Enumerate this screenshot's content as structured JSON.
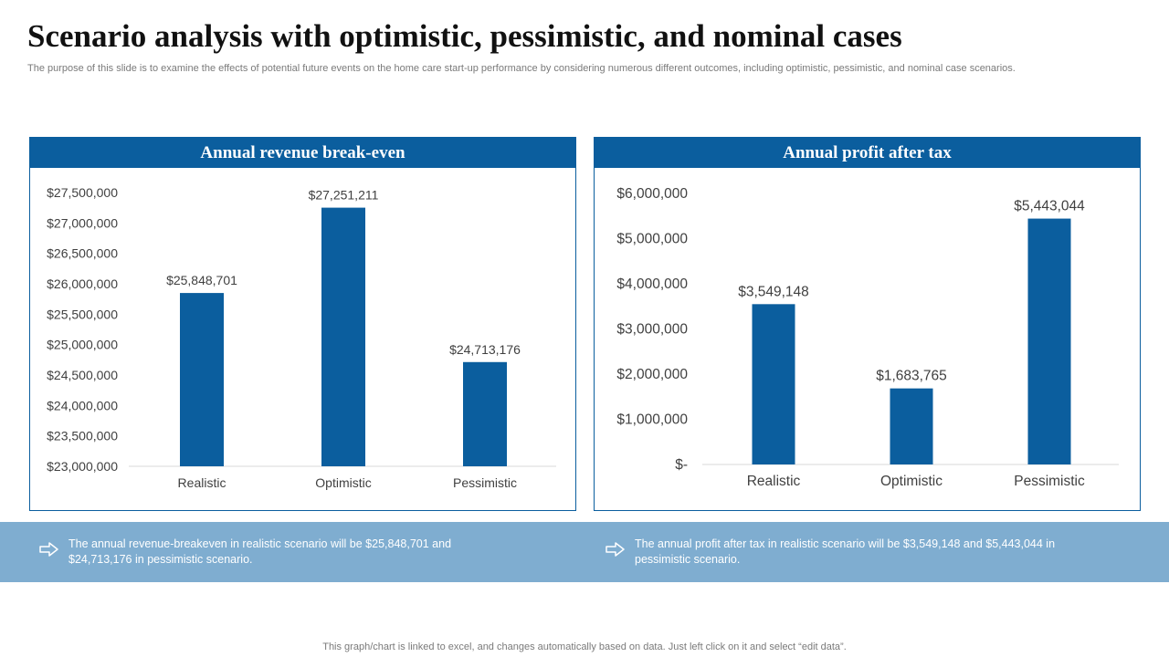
{
  "page": {
    "title": "Scenario analysis with optimistic, pessimistic, and nominal cases",
    "subtitle": "The purpose of this slide is to examine the effects of potential future events on the home care start-up performance by considering numerous different outcomes, including optimistic, pessimistic, and nominal case scenarios.",
    "footnote": "This graph/chart is linked to excel, and changes automatically based on data. Just left click on it and select “edit data”."
  },
  "summaries": [
    {
      "text": "The annual revenue-breakeven  in realistic scenario will be $25,848,701 and $24,713,176 in pessimistic scenario."
    },
    {
      "text": "The annual profit after tax in realistic scenario will be $3,549,148 and $5,443,044 in pessimistic scenario."
    }
  ],
  "colors": {
    "accent": "#0b5e9e",
    "band": "#7fadd0"
  },
  "chart_data": [
    {
      "type": "bar",
      "title": "Annual revenue break-even",
      "categories": [
        "Realistic",
        "Optimistic",
        "Pessimistic"
      ],
      "values": [
        25848701,
        27251211,
        24713176
      ],
      "data_labels": [
        "$25,848,701",
        "$27,251,211",
        "$24,713,176"
      ],
      "ylim": [
        23000000,
        27500000
      ],
      "yticks": [
        23000000,
        23500000,
        24000000,
        24500000,
        25000000,
        25500000,
        26000000,
        26500000,
        27000000,
        27500000
      ],
      "ytick_labels": [
        "$23,000,000",
        "$23,500,000",
        "$24,000,000",
        "$24,500,000",
        "$25,000,000",
        "$25,500,000",
        "$26,000,000",
        "$26,500,000",
        "$27,000,000",
        "$27,500,000"
      ],
      "xlabel": "",
      "ylabel": "",
      "grid": false,
      "legend": false
    },
    {
      "type": "bar",
      "title": "Annual profit after tax",
      "categories": [
        "Realistic",
        "Optimistic",
        "Pessimistic"
      ],
      "values": [
        3549148,
        1683765,
        5443044
      ],
      "data_labels": [
        "$3,549,148",
        "$1,683,765",
        "$5,443,044"
      ],
      "ylim": [
        0,
        6000000
      ],
      "yticks": [
        0,
        1000000,
        2000000,
        3000000,
        4000000,
        5000000,
        6000000
      ],
      "ytick_labels": [
        "$-",
        "$1,000,000",
        "$2,000,000",
        "$3,000,000",
        "$4,000,000",
        "$5,000,000",
        "$6,000,000"
      ],
      "xlabel": "",
      "ylabel": "",
      "grid": false,
      "legend": false
    }
  ]
}
